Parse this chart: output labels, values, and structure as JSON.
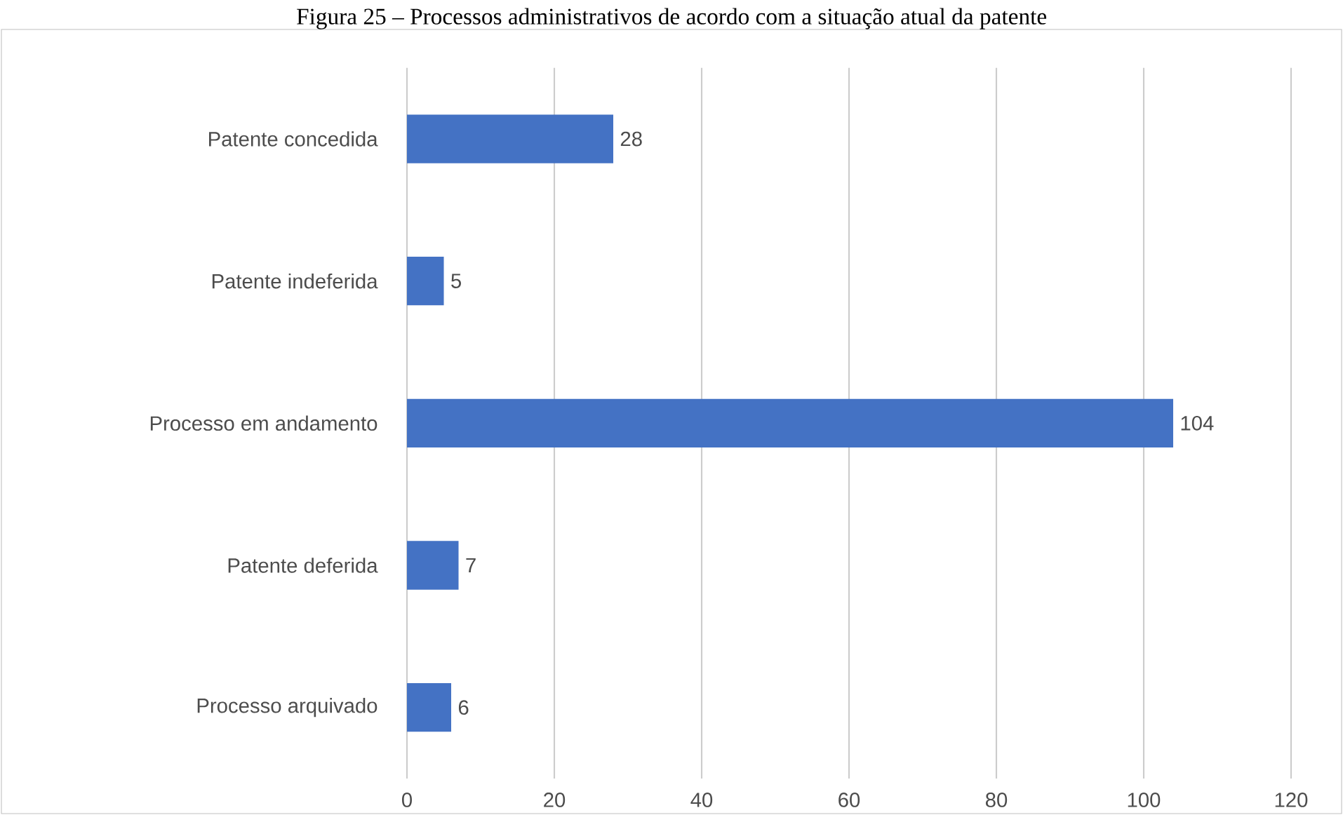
{
  "chart_data": {
    "type": "bar",
    "orientation": "horizontal",
    "title": "Figura 25 – Processos administrativos de acordo com a situação atual da patente",
    "categories": [
      "Patente concedida",
      "Patente indeferida",
      "Processo em andamento",
      "Patente deferida",
      "Processo arquivado"
    ],
    "values": [
      28,
      5,
      104,
      7,
      6
    ],
    "color": "#4472c4",
    "xlim": [
      0,
      120
    ],
    "xticks": [
      0,
      20,
      40,
      60,
      80,
      100,
      120
    ],
    "grid": "x",
    "data_labels": true
  }
}
